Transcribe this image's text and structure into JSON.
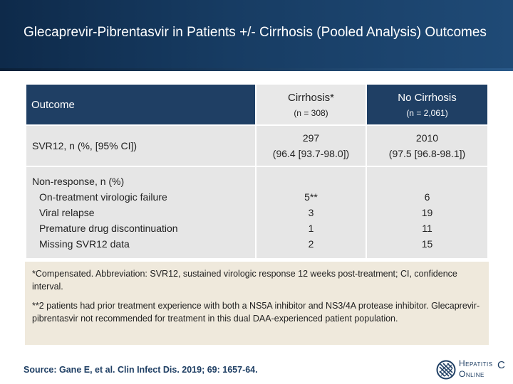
{
  "title": "Glecaprevir-Pibrentasvir in Patients +/- Cirrhosis (Pooled Analysis) Outcomes",
  "table": {
    "header": {
      "outcome": "Outcome",
      "cirrhosis_name": "Cirrhosis*",
      "cirrhosis_n": "(n = 308)",
      "no_cirrhosis_name": "No Cirrhosis",
      "no_cirrhosis_n": "(n = 2,061)"
    },
    "svr": {
      "label": "SVR12, n (%, [95% CI])",
      "cirrhosis_line1": "297",
      "cirrhosis_line2": "(96.4 [93.7-98.0])",
      "no_cirrhosis_line1": "2010",
      "no_cirrhosis_line2": "(97.5 [96.8-98.1])"
    },
    "nonresponse": {
      "label": "Non-response, n (%)",
      "items": [
        {
          "label": "On-treatment virologic failure",
          "cirrhosis": "5**",
          "no_cirrhosis": "6"
        },
        {
          "label": "Viral relapse",
          "cirrhosis": "3",
          "no_cirrhosis": "19"
        },
        {
          "label": "Premature drug discontinuation",
          "cirrhosis": "1",
          "no_cirrhosis": "11"
        },
        {
          "label": "Missing SVR12 data",
          "cirrhosis": "2",
          "no_cirrhosis": "15"
        }
      ]
    }
  },
  "notes": {
    "note1": "*Compensated. Abbreviation: SVR12, sustained virologic response 12 weeks post-treatment; CI, confidence interval.",
    "note2": "**2 patients had prior treatment experience with both a NS5A inhibitor and NS3/4A protease inhibitor. Glecaprevir-pibrentasvir not recommended for treatment in this dual DAA-experienced patient population."
  },
  "source": "Source: Gane E, et al. Clin Infect Dis. 2019; 69: 1657-64.",
  "logo": {
    "line1": "Hepatitis",
    "line2": "Online",
    "letter": "C",
    "icon": "hepatitis-c-online-logo-icon",
    "color": "#1f3f64"
  }
}
